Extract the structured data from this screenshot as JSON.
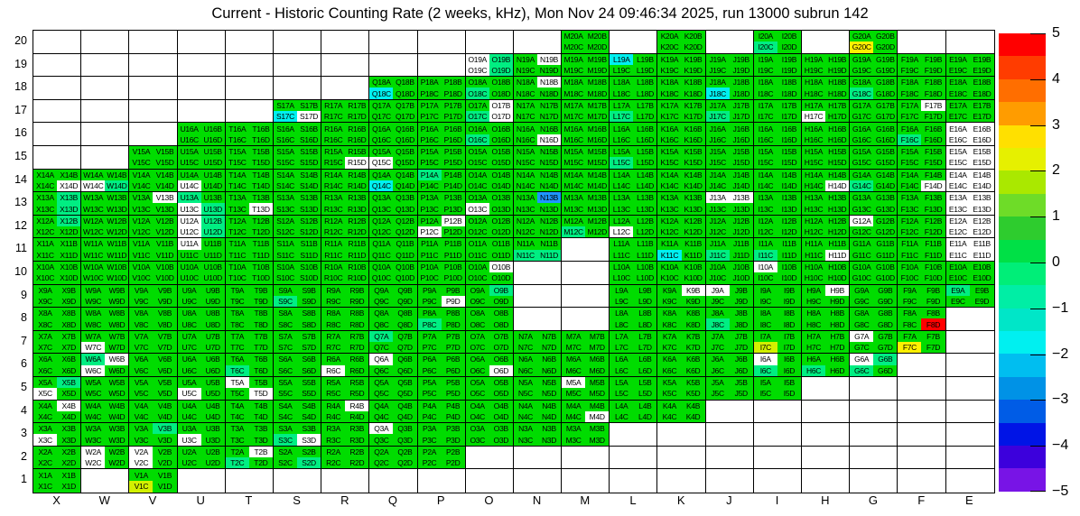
{
  "chart_data": {
    "type": "heatmap",
    "title": "Current - Historic Counting Rate (2 weeks, kHz), Mon Nov 24 09:46:34 2025, run 13000 subrun 142",
    "x_categories": [
      "X",
      "W",
      "V",
      "U",
      "T",
      "S",
      "R",
      "Q",
      "P",
      "O",
      "N",
      "M",
      "L",
      "K",
      "J",
      "I",
      "H",
      "G",
      "F",
      "E"
    ],
    "y_categories": [
      "20",
      "19",
      "18",
      "17",
      "16",
      "15",
      "14",
      "13",
      "12",
      "11",
      "10",
      "9",
      "8",
      "7",
      "6",
      "5",
      "4",
      "3",
      "2",
      "1"
    ],
    "quadrant_order": [
      "A",
      "B",
      "C",
      "D"
    ],
    "zlim": [
      -5,
      5
    ],
    "legend_position": "right",
    "grid": true,
    "colorbar_ticks": [
      "5",
      "4",
      "3",
      "2",
      "1",
      "0",
      "−1",
      "−2",
      "−3",
      "−4",
      "−5"
    ],
    "colorbar_bands": [
      "#FF0000",
      "#FF3C00",
      "#FF6E00",
      "#FF9C00",
      "#FFE000",
      "#E6F000",
      "#AAE800",
      "#6EDC28",
      "#2ECC2E",
      "#00E046",
      "#00EE78",
      "#00EEA5",
      "#00E6C8",
      "#00F0F0",
      "#00BEF0",
      "#0092E6",
      "#005CE6",
      "#0014E6",
      "#3C00DC",
      "#7814E6"
    ],
    "value_colors": {
      "default": "#00DC00",
      "white": "#FFFFFF",
      "spring": "#00EE82",
      "cyan": "#00F0F0",
      "blue": "#1E96FF",
      "yellow": "#FFF000",
      "yellowgreen": "#D2F000",
      "red": "#FF0000"
    },
    "rows_present": {
      "20": [
        "M",
        "K",
        "I",
        "G"
      ],
      "19": [
        "O",
        "N",
        "M",
        "L",
        "K",
        "J",
        "I",
        "H",
        "G",
        "F",
        "E"
      ],
      "18": [
        "Q",
        "P",
        "O",
        "N",
        "M",
        "L",
        "K",
        "J",
        "I",
        "H",
        "G",
        "F",
        "E"
      ],
      "17": [
        "S",
        "R",
        "Q",
        "P",
        "O",
        "N",
        "M",
        "L",
        "K",
        "J",
        "I",
        "H",
        "G",
        "F",
        "E"
      ],
      "16": [
        "U",
        "T",
        "S",
        "R",
        "Q",
        "P",
        "O",
        "N",
        "M",
        "L",
        "K",
        "J",
        "I",
        "H",
        "G",
        "F",
        "E"
      ],
      "15": [
        "V",
        "U",
        "T",
        "S",
        "R",
        "Q",
        "P",
        "O",
        "N",
        "M",
        "L",
        "K",
        "J",
        "I",
        "H",
        "G",
        "F",
        "E"
      ],
      "14": [
        "X",
        "W",
        "V",
        "U",
        "T",
        "S",
        "R",
        "Q",
        "P",
        "O",
        "N",
        "M",
        "L",
        "K",
        "J",
        "I",
        "H",
        "G",
        "F",
        "E"
      ],
      "13": [
        "X",
        "W",
        "V",
        "U",
        "T",
        "S",
        "R",
        "Q",
        "P",
        "O",
        "N",
        "M",
        "L",
        "K",
        "J",
        "I",
        "H",
        "G",
        "F",
        "E"
      ],
      "12": [
        "X",
        "W",
        "V",
        "U",
        "T",
        "S",
        "R",
        "Q",
        "P",
        "O",
        "N",
        "M",
        "L",
        "K",
        "J",
        "I",
        "H",
        "G",
        "F",
        "E"
      ],
      "11": [
        "X",
        "W",
        "V",
        "U",
        "T",
        "S",
        "R",
        "Q",
        "P",
        "O",
        "N",
        "L",
        "K",
        "J",
        "I",
        "H",
        "G",
        "F",
        "E"
      ],
      "10": [
        "X",
        "W",
        "V",
        "U",
        "T",
        "S",
        "R",
        "Q",
        "P",
        "O",
        "L",
        "K",
        "J",
        "I",
        "H",
        "G",
        "F",
        "E"
      ],
      "9": [
        "X",
        "W",
        "V",
        "U",
        "T",
        "S",
        "R",
        "Q",
        "P",
        "O",
        "L",
        "K",
        "J",
        "I",
        "H",
        "G",
        "F",
        "E"
      ],
      "8": [
        "X",
        "W",
        "V",
        "U",
        "T",
        "S",
        "R",
        "Q",
        "P",
        "O",
        "L",
        "K",
        "J",
        "I",
        "H",
        "G",
        "F"
      ],
      "7": [
        "X",
        "W",
        "V",
        "U",
        "T",
        "S",
        "R",
        "Q",
        "P",
        "O",
        "N",
        "M",
        "L",
        "K",
        "J",
        "I",
        "H",
        "G",
        "F"
      ],
      "6": [
        "X",
        "W",
        "V",
        "U",
        "T",
        "S",
        "R",
        "Q",
        "P",
        "O",
        "N",
        "M",
        "L",
        "K",
        "J",
        "I",
        "H",
        "G"
      ],
      "5": [
        "X",
        "W",
        "V",
        "U",
        "T",
        "S",
        "R",
        "Q",
        "P",
        "O",
        "N",
        "M",
        "L",
        "K",
        "J",
        "I"
      ],
      "4": [
        "X",
        "W",
        "V",
        "U",
        "T",
        "S",
        "R",
        "Q",
        "P",
        "O",
        "N",
        "M",
        "L",
        "K"
      ],
      "3": [
        "X",
        "W",
        "V",
        "U",
        "T",
        "S",
        "R",
        "Q",
        "P",
        "O",
        "N",
        "M"
      ],
      "2": [
        "X",
        "W",
        "V",
        "U",
        "T",
        "S",
        "R",
        "Q",
        "P"
      ],
      "1": [
        "X",
        "V"
      ]
    },
    "special_quadrants": {
      "G20C": "yellow",
      "I20C": "spring",
      "L19A": "cyan",
      "O19A": "white",
      "O19C": "white",
      "O19B": "spring",
      "O19D": "spring",
      "N19B": "white",
      "Q18C": "cyan",
      "J18C": "cyan",
      "N18B": "white",
      "O18C": "spring",
      "G18C": "spring",
      "S17C": "cyan",
      "S17D": "white",
      "O17B": "white",
      "O17C": "spring",
      "O17D": "white",
      "H17C": "white",
      "F17B": "white",
      "J17C": "spring",
      "L17C": "spring",
      "N16D": "white",
      "E16A": "white",
      "E16B": "white",
      "E16C": "white",
      "E16D": "white",
      "F16C": "spring",
      "O16C": "spring",
      "R15D": "white",
      "Q15C": "white",
      "L15C": "spring",
      "E15A": "white",
      "E15B": "white",
      "E15C": "white",
      "E15D": "white",
      "X14D": "white",
      "W14C": "white",
      "W14D": "spring",
      "U14C": "white",
      "Q14C": "cyan",
      "P14A": "spring",
      "H14D": "white",
      "G14C": "spring",
      "F14D": "white",
      "E14A": "white",
      "E14B": "white",
      "E14C": "white",
      "E14D": "white",
      "X13B": "spring",
      "X13D": "spring",
      "V13B": "white",
      "U13A": "spring",
      "U13C": "white",
      "U13D": "spring",
      "T13D": "white",
      "O13C": "white",
      "N13B": "blue",
      "J13A": "white",
      "J13B": "white",
      "E13A": "white",
      "E13B": "white",
      "E13C": "white",
      "E13D": "white",
      "X12B": "spring",
      "U12A": "white",
      "U12B": "spring",
      "U12C": "white",
      "U12D": "spring",
      "P12B": "white",
      "P12C": "white",
      "M12C": "spring",
      "L12C": "white",
      "G12A": "white",
      "E12A": "white",
      "E12B": "white",
      "E12C": "white",
      "E12D": "white",
      "U11A": "white",
      "N11C": "spring",
      "N11D": "spring",
      "K11C": "cyan",
      "J11C": "spring",
      "I11C": "spring",
      "H11D": "white",
      "E11A": "white",
      "E11B": "white",
      "E11C": "white",
      "E11D": "white",
      "I10A": "white",
      "O10B": "white",
      "S9C": "spring",
      "P9D": "white",
      "O9B": "spring",
      "K9B": "white",
      "J9A": "white",
      "H9B": "white",
      "E9A": "spring",
      "P8C": "spring",
      "J8C": "spring",
      "F8D": "red",
      "W7C": "white",
      "Q7A": "spring",
      "G7A": "white",
      "F7C": "yellow",
      "I7C": "yellowgreen",
      "W6A": "spring",
      "W6B": "white",
      "W6C": "white",
      "T6C": "spring",
      "R6C": "white",
      "Q6A": "white",
      "O6D": "white",
      "I6A": "white",
      "I6C": "spring",
      "H6C": "spring",
      "G6A": "white",
      "G6B": "spring",
      "G6C": "spring",
      "X5B": "spring",
      "X5C": "white",
      "U5C": "white",
      "T5A": "white",
      "T5D": "white",
      "M5A": "white",
      "X4B": "white",
      "R4B": "white",
      "M4D": "white",
      "X3C": "white",
      "V3B": "spring",
      "U3C": "white",
      "S3C": "spring",
      "S3D": "white",
      "Q3A": "white",
      "W2A": "white",
      "W2C": "white",
      "V2A": "white",
      "V2C": "white",
      "T2B": "white",
      "T2C": "spring",
      "S2D": "spring",
      "V1C": "yellowgreen"
    }
  }
}
